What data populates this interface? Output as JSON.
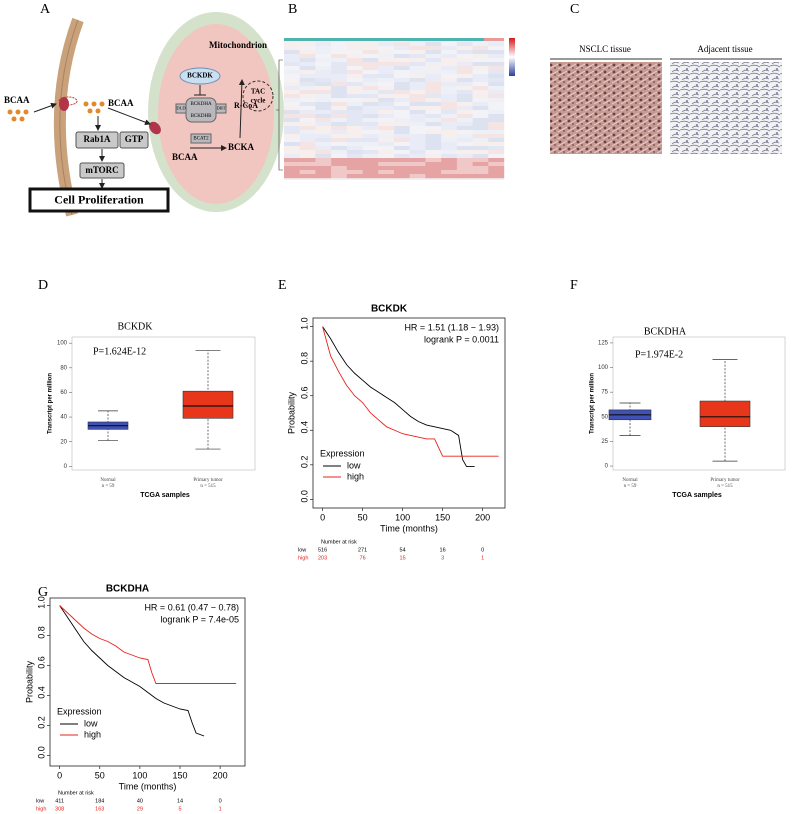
{
  "figure": {
    "panel_labels": [
      "A",
      "B",
      "C",
      "D",
      "E",
      "F",
      "G"
    ],
    "diagram": {
      "input": "BCAA",
      "cytosol_bcaa": "BCAA",
      "rab1a": "Rab1A",
      "gtp": "GTP",
      "mtorc": "mTORC",
      "outcome": "Cell Proliferation",
      "mitochondrion": "Mitochondrion",
      "bckdk": "BCKDK",
      "bckdha": "BCKDHA",
      "bckdhb": "BCKDHB",
      "dld": "DLD",
      "dbt": "DBT",
      "rcoa": "R-CoA",
      "tac": [
        "TAC",
        "cycle"
      ],
      "bcat2": "BCAT2",
      "bcka": "BCKA",
      "mito_bcaa": "BCAA"
    },
    "images": [
      "NSCLC tissue",
      "Adjacent tissue"
    ]
  },
  "chart_data": [
    {
      "type": "box",
      "title": "BCKDK",
      "annotation": "P=1.624E-12",
      "xlabel": "TCGA samples",
      "ylabel": "Transcript per million",
      "categories": [
        "Normal",
        "Primary tumor"
      ],
      "n_labels": [
        "n = 59",
        "n = 515"
      ],
      "boxes": [
        {
          "min": 21,
          "q1": 30,
          "median": 33,
          "q3": 36,
          "max": 45,
          "color": "#3f51b5"
        },
        {
          "min": 14,
          "q1": 39,
          "median": 49,
          "q3": 61,
          "max": 94,
          "color": "#e8361b"
        }
      ],
      "ylim": [
        -3,
        105
      ],
      "yticks": [
        0,
        20,
        40,
        60,
        80,
        100
      ]
    },
    {
      "type": "km",
      "title": "BCKDK",
      "annotations": [
        "HR = 1.51 (1.18 − 1.93)",
        "logrank P = 0.0011"
      ],
      "xlabel": "Time (months)",
      "ylabel": "Probability",
      "legend_title": "Expression",
      "series": [
        {
          "name": "low",
          "color": "#000000",
          "x": [
            0,
            10,
            20,
            30,
            40,
            50,
            60,
            70,
            80,
            90,
            100,
            110,
            120,
            130,
            140,
            150,
            160,
            170,
            175,
            180,
            190
          ],
          "values": [
            1.0,
            0.93,
            0.85,
            0.78,
            0.73,
            0.69,
            0.65,
            0.62,
            0.59,
            0.56,
            0.52,
            0.48,
            0.45,
            0.43,
            0.42,
            0.41,
            0.4,
            0.37,
            0.23,
            0.19,
            0.19
          ]
        },
        {
          "name": "high",
          "color": "#e8211b",
          "x": [
            0,
            10,
            20,
            30,
            40,
            50,
            60,
            70,
            80,
            90,
            100,
            110,
            120,
            130,
            140,
            150,
            160,
            180,
            200,
            220
          ],
          "values": [
            1.0,
            0.83,
            0.74,
            0.66,
            0.6,
            0.56,
            0.5,
            0.46,
            0.42,
            0.4,
            0.38,
            0.37,
            0.36,
            0.35,
            0.35,
            0.25,
            0.25,
            0.25,
            0.25,
            0.25
          ]
        }
      ],
      "xlim": [
        -12,
        228
      ],
      "ylim": [
        -0.05,
        1.05
      ],
      "xticks": [
        0,
        50,
        100,
        150,
        200
      ],
      "yticks": [
        {
          "value": 0,
          "label": "0.0"
        },
        {
          "value": 0.2,
          "label": "0.2"
        },
        {
          "value": 0.4,
          "label": "0.4"
        },
        {
          "value": 0.6,
          "label": "0.6"
        },
        {
          "value": 0.8,
          "label": "0.8"
        },
        {
          "value": 1,
          "label": "1.0"
        }
      ],
      "risk_table": {
        "title": "Number at risk",
        "rows": [
          {
            "name": "low",
            "values": [
              516,
              271,
              54,
              16,
              0
            ]
          },
          {
            "name": "high",
            "values": [
              203,
              76,
              15,
              3,
              1
            ]
          }
        ]
      }
    },
    {
      "type": "box",
      "title": "BCKDHA",
      "annotation": "P=1.974E-2",
      "xlabel": "TCGA samples",
      "ylabel": "Transcript per million",
      "categories": [
        "Normal",
        "Primary tumor"
      ],
      "n_labels": [
        "n = 59",
        "n = 515"
      ],
      "boxes": [
        {
          "min": 31,
          "q1": 47,
          "median": 52,
          "q3": 57,
          "max": 64,
          "color": "#3f51b5"
        },
        {
          "min": 5,
          "q1": 40,
          "median": 50,
          "q3": 66,
          "max": 108,
          "color": "#e8361b"
        }
      ],
      "ylim": [
        -4,
        131
      ],
      "yticks": [
        0,
        25,
        50,
        75,
        100,
        125
      ]
    },
    {
      "type": "km",
      "title": "BCKDHA",
      "annotations": [
        "HR = 0.61 (0.47 − 0.78)",
        "logrank P = 7.4e-05"
      ],
      "xlabel": "Time (months)",
      "ylabel": "Probability",
      "legend_title": "Expression",
      "series": [
        {
          "name": "low",
          "color": "#000000",
          "x": [
            0,
            10,
            20,
            30,
            40,
            50,
            60,
            70,
            80,
            90,
            100,
            110,
            120,
            130,
            140,
            150,
            160,
            165,
            170,
            180
          ],
          "values": [
            1.0,
            0.92,
            0.84,
            0.76,
            0.7,
            0.65,
            0.6,
            0.56,
            0.52,
            0.49,
            0.46,
            0.42,
            0.38,
            0.35,
            0.33,
            0.31,
            0.3,
            0.22,
            0.15,
            0.13
          ]
        },
        {
          "name": "high",
          "color": "#e8211b",
          "x": [
            0,
            10,
            20,
            30,
            40,
            50,
            60,
            70,
            80,
            90,
            100,
            110,
            115,
            120,
            150,
            220
          ],
          "values": [
            1.0,
            0.95,
            0.9,
            0.85,
            0.81,
            0.78,
            0.76,
            0.73,
            0.69,
            0.67,
            0.65,
            0.64,
            0.55,
            0.48,
            0.48,
            0.48
          ]
        }
      ],
      "xlim": [
        -12,
        231
      ],
      "ylim": [
        -0.07,
        1.05
      ],
      "xticks": [
        0,
        50,
        100,
        150,
        200
      ],
      "yticks": [
        {
          "value": 0,
          "label": "0.0"
        },
        {
          "value": 0.2,
          "label": "0.2"
        },
        {
          "value": 0.4,
          "label": "0.4"
        },
        {
          "value": 0.6,
          "label": "0.6"
        },
        {
          "value": 0.8,
          "label": "0.8"
        },
        {
          "value": 1,
          "label": "1.0"
        }
      ],
      "risk_table": {
        "title": "Number at risk",
        "rows": [
          {
            "name": "low",
            "values": [
              411,
              184,
              40,
              14,
              0
            ]
          },
          {
            "name": "high",
            "values": [
              308,
              163,
              29,
              5,
              1
            ]
          }
        ]
      }
    }
  ]
}
